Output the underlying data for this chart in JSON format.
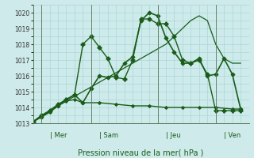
{
  "xlabel": "Pression niveau de la mer( hPa )",
  "bg_color": "#ceeaea",
  "grid_color": "#a8d8d8",
  "line_color": "#1a5c1a",
  "ylim": [
    1013.0,
    1020.5
  ],
  "yticks": [
    1013,
    1014,
    1015,
    1016,
    1017,
    1018,
    1019,
    1020
  ],
  "day_labels": [
    "| Mer",
    "| Sam",
    "| Jeu",
    "| Ven"
  ],
  "day_positions": [
    1,
    4,
    8,
    11.5
  ],
  "vline_positions": [
    0.5,
    3.5,
    7.5,
    11.0
  ],
  "xlim": [
    0,
    13
  ],
  "series": [
    {
      "x": [
        0.0,
        0.5,
        1.0,
        1.5,
        2.0,
        2.5,
        3.0,
        3.5,
        4.0,
        4.5,
        5.0,
        5.5,
        6.0,
        6.5,
        7.0,
        7.5,
        8.0,
        8.5,
        9.0,
        9.5,
        10.0,
        10.5,
        11.0,
        11.5,
        12.0,
        12.5
      ],
      "y": [
        1013.1,
        1013.4,
        1013.7,
        1014.1,
        1014.4,
        1014.7,
        1015.0,
        1015.3,
        1015.6,
        1015.9,
        1016.2,
        1016.5,
        1016.8,
        1017.1,
        1017.4,
        1017.7,
        1018.0,
        1018.5,
        1019.0,
        1019.5,
        1019.8,
        1019.5,
        1018.0,
        1017.1,
        1016.8,
        1016.8
      ],
      "marker": null,
      "markersize": 0,
      "linewidth": 0.9,
      "linestyle": "-"
    },
    {
      "x": [
        0.0,
        0.5,
        1.0,
        1.5,
        2.0,
        2.5,
        3.0,
        3.5,
        4.0,
        4.5,
        5.0,
        5.5,
        6.0,
        6.5,
        7.0,
        7.5,
        8.0,
        8.5,
        9.0,
        9.5,
        10.0,
        10.5,
        11.0,
        11.5,
        12.0,
        12.5
      ],
      "y": [
        1013.1,
        1013.5,
        1013.8,
        1014.2,
        1014.5,
        1014.8,
        1018.0,
        1018.5,
        1017.8,
        1017.1,
        1015.9,
        1015.8,
        1017.0,
        1019.6,
        1019.6,
        1019.3,
        1019.3,
        1018.5,
        1017.0,
        1016.8,
        1017.0,
        1016.1,
        1013.8,
        1013.8,
        1013.8,
        1013.8
      ],
      "marker": "P",
      "markersize": 3.5,
      "linewidth": 1.0,
      "linestyle": "-"
    },
    {
      "x": [
        0.0,
        0.5,
        1.0,
        1.5,
        2.0,
        2.5,
        3.0,
        3.5,
        4.0,
        4.5,
        5.0,
        5.5,
        6.0,
        6.5,
        7.0,
        7.5,
        8.0,
        8.5,
        9.0,
        9.5,
        10.0,
        10.5,
        11.0,
        11.5,
        12.0,
        12.5
      ],
      "y": [
        1013.1,
        1013.4,
        1013.8,
        1014.1,
        1014.5,
        1014.8,
        1014.3,
        1015.2,
        1016.0,
        1015.9,
        1016.0,
        1016.8,
        1017.2,
        1019.5,
        1020.0,
        1019.8,
        1018.4,
        1017.5,
        1016.8,
        1016.8,
        1017.1,
        1016.0,
        1016.1,
        1017.1,
        1016.1,
        1013.9
      ],
      "marker": "D",
      "markersize": 2.5,
      "linewidth": 1.2,
      "linestyle": "-"
    },
    {
      "x": [
        0.0,
        0.5,
        1.0,
        1.5,
        2.0,
        2.5,
        3.0,
        4.0,
        5.0,
        6.0,
        7.0,
        8.0,
        9.0,
        10.0,
        11.0,
        12.0,
        12.5
      ],
      "y": [
        1013.1,
        1013.4,
        1013.7,
        1014.1,
        1014.4,
        1014.5,
        1014.3,
        1014.3,
        1014.2,
        1014.1,
        1014.1,
        1014.0,
        1014.0,
        1014.0,
        1014.0,
        1013.9,
        1013.9
      ],
      "marker": "D",
      "markersize": 2.0,
      "linewidth": 1.0,
      "linestyle": "-"
    }
  ]
}
